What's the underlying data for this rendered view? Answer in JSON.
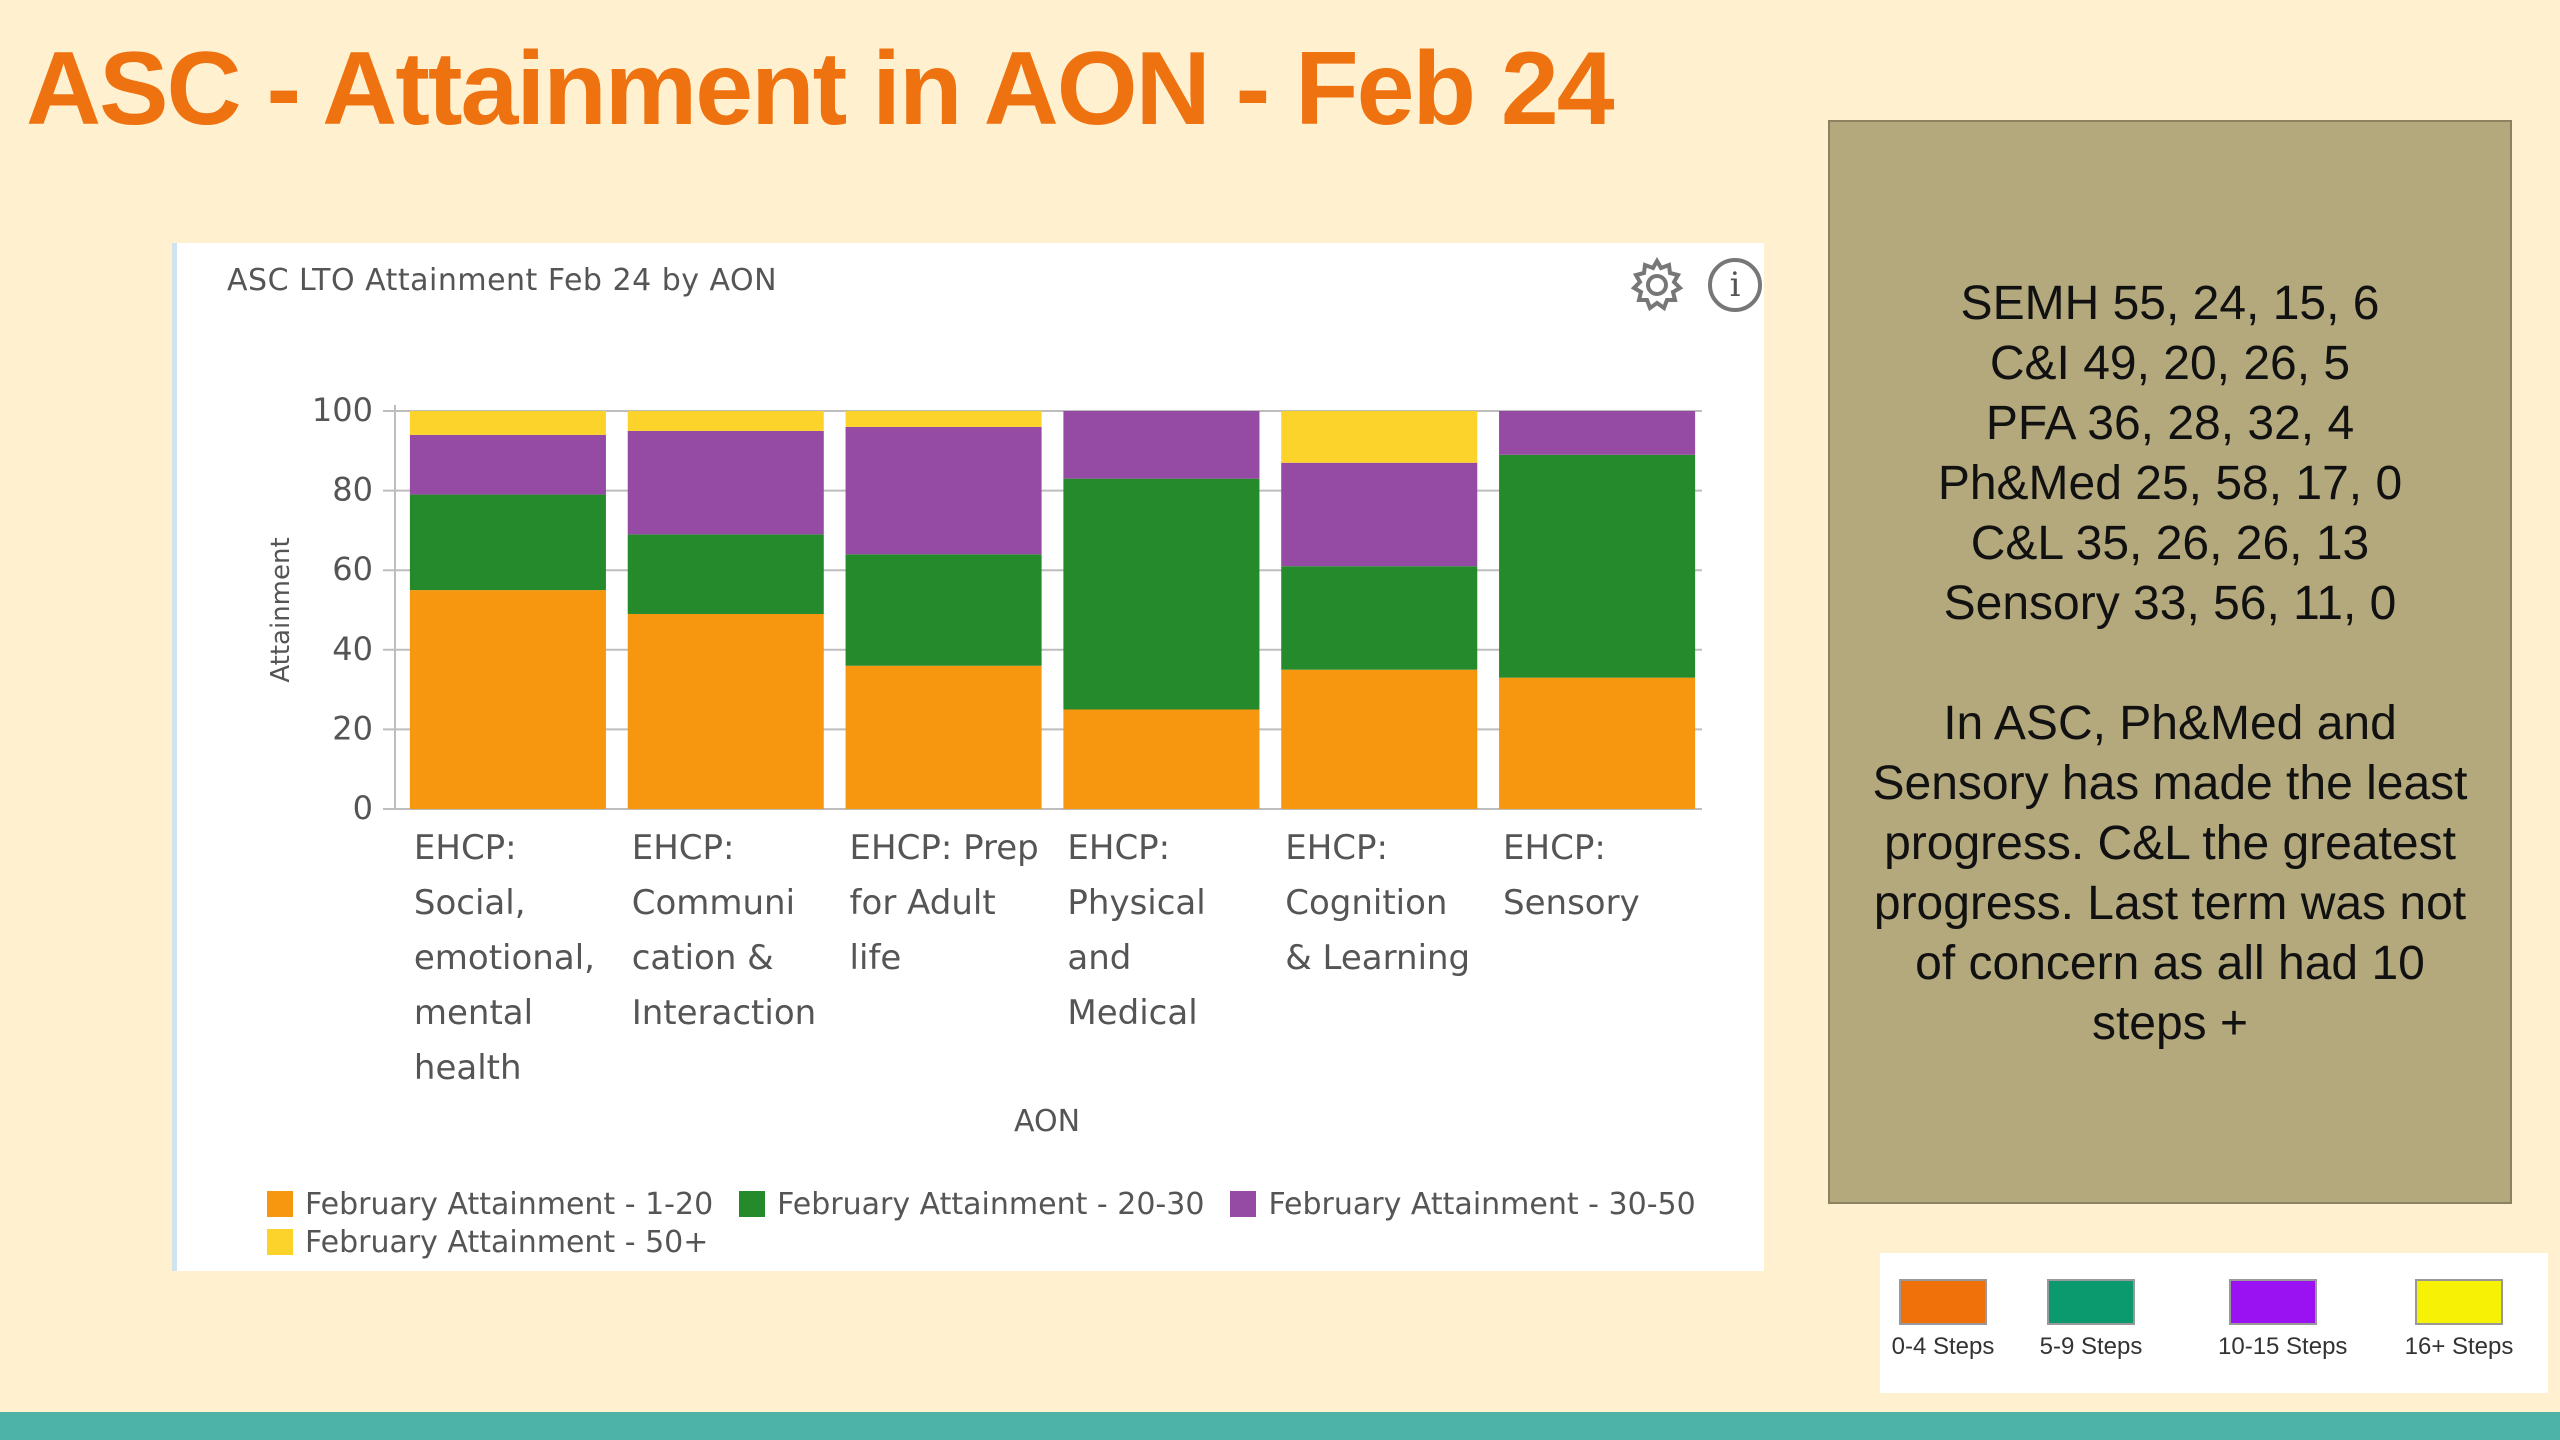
{
  "slide": {
    "title": "ASC - Attainment in AON - Feb 24"
  },
  "chart_card": {
    "title": "ASC LTO Attainment Feb 24 by AON",
    "icons": [
      "gear-icon",
      "info-icon"
    ],
    "info_glyph": "i"
  },
  "chart_data": {
    "type": "bar",
    "stacked": true,
    "title": "ASC LTO Attainment Feb 24 by AON",
    "xlabel": "AON",
    "ylabel": "Attainment",
    "ylim": [
      0,
      100
    ],
    "yticks": [
      0,
      20,
      40,
      60,
      80,
      100
    ],
    "grid": true,
    "legend_position": "bottom",
    "categories": [
      [
        "EHCP:",
        "Social,",
        "emotional,",
        "mental",
        "health"
      ],
      [
        "EHCP:",
        "Communi",
        "cation &",
        "Interaction"
      ],
      [
        "EHCP: Prep",
        "for Adult",
        "life"
      ],
      [
        "EHCP:",
        "Physical",
        "and",
        "Medical"
      ],
      [
        "EHCP:",
        "Cognition",
        "& Learning"
      ],
      [
        "EHCP:",
        "Sensory"
      ]
    ],
    "series": [
      {
        "name": "February Attainment - 1-20",
        "color": "#f7960f",
        "values": [
          55,
          49,
          36,
          25,
          35,
          33
        ]
      },
      {
        "name": "February Attainment - 20-30",
        "color": "#258a2c",
        "values": [
          24,
          20,
          28,
          58,
          26,
          56
        ]
      },
      {
        "name": "February Attainment - 30-50",
        "color": "#954aa4",
        "values": [
          15,
          26,
          32,
          17,
          26,
          11
        ]
      },
      {
        "name": "February Attainment - 50+",
        "color": "#fcd32a",
        "values": [
          6,
          5,
          4,
          0,
          13,
          0
        ]
      }
    ]
  },
  "summary": {
    "lines": [
      "SEMH 55, 24, 15, 6",
      "C&I 49, 20, 26, 5",
      "PFA 36, 28, 32, 4",
      "Ph&Med 25, 58, 17, 0",
      "C&L 35, 26, 26, 13",
      "Sensory 33, 56, 11, 0"
    ],
    "note": "In ASC, Ph&Med and Sensory has made the least progress. C&L the greatest progress. Last term was not of concern as all had 10 steps +"
  },
  "key": {
    "items": [
      {
        "label": "0-4 Steps",
        "color": "#f0700a"
      },
      {
        "label": "5-9 Steps",
        "color": "#0a9a6e"
      },
      {
        "label": "10-15 Steps",
        "color": "#9a12f2"
      },
      {
        "label": "16+ Steps",
        "color": "#f7f205"
      }
    ]
  }
}
